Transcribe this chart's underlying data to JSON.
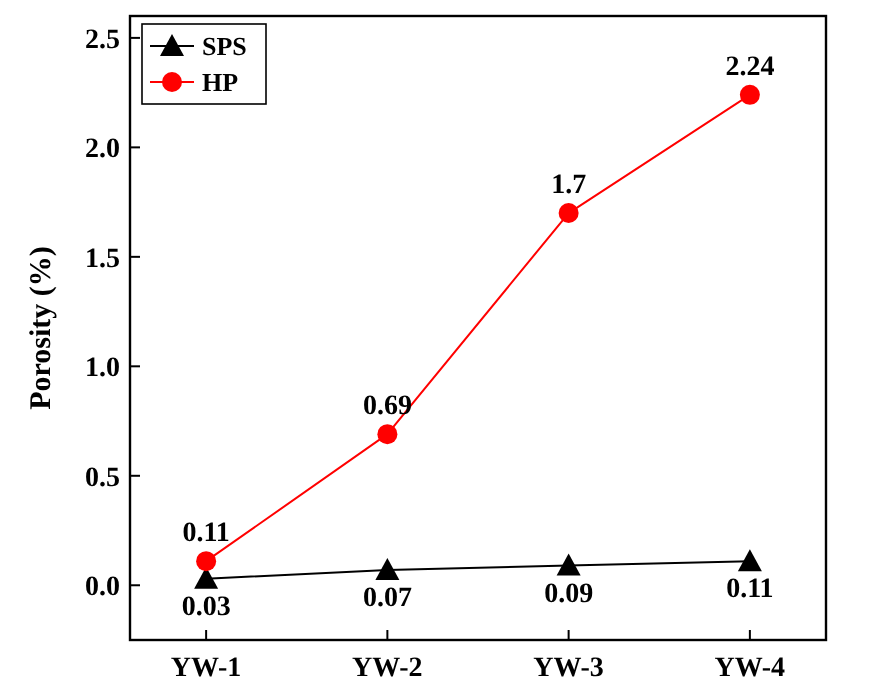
{
  "chart_data": {
    "type": "line",
    "ylabel": "Porosity (%)",
    "categories": [
      "YW-1",
      "YW-2",
      "YW-3",
      "YW-4"
    ],
    "series": [
      {
        "name": "SPS",
        "color": "#000000",
        "marker": "triangle",
        "values": [
          0.03,
          0.07,
          0.09,
          0.11
        ]
      },
      {
        "name": "HP",
        "color": "#ff0000",
        "marker": "circle",
        "values": [
          0.11,
          0.69,
          1.7,
          2.24
        ]
      }
    ],
    "ylim": [
      -0.25,
      2.6
    ],
    "yticks": [
      {
        "value": 0,
        "label": "0.0"
      },
      {
        "value": 0.5,
        "label": "0.5"
      },
      {
        "value": 1,
        "label": "1.0"
      },
      {
        "value": 1.5,
        "label": "1.5"
      },
      {
        "value": 2,
        "label": "2.0"
      },
      {
        "value": 2.5,
        "label": "2.5"
      }
    ],
    "data_labels": true,
    "legend": "top left",
    "grid": false,
    "line_style": "solid"
  }
}
